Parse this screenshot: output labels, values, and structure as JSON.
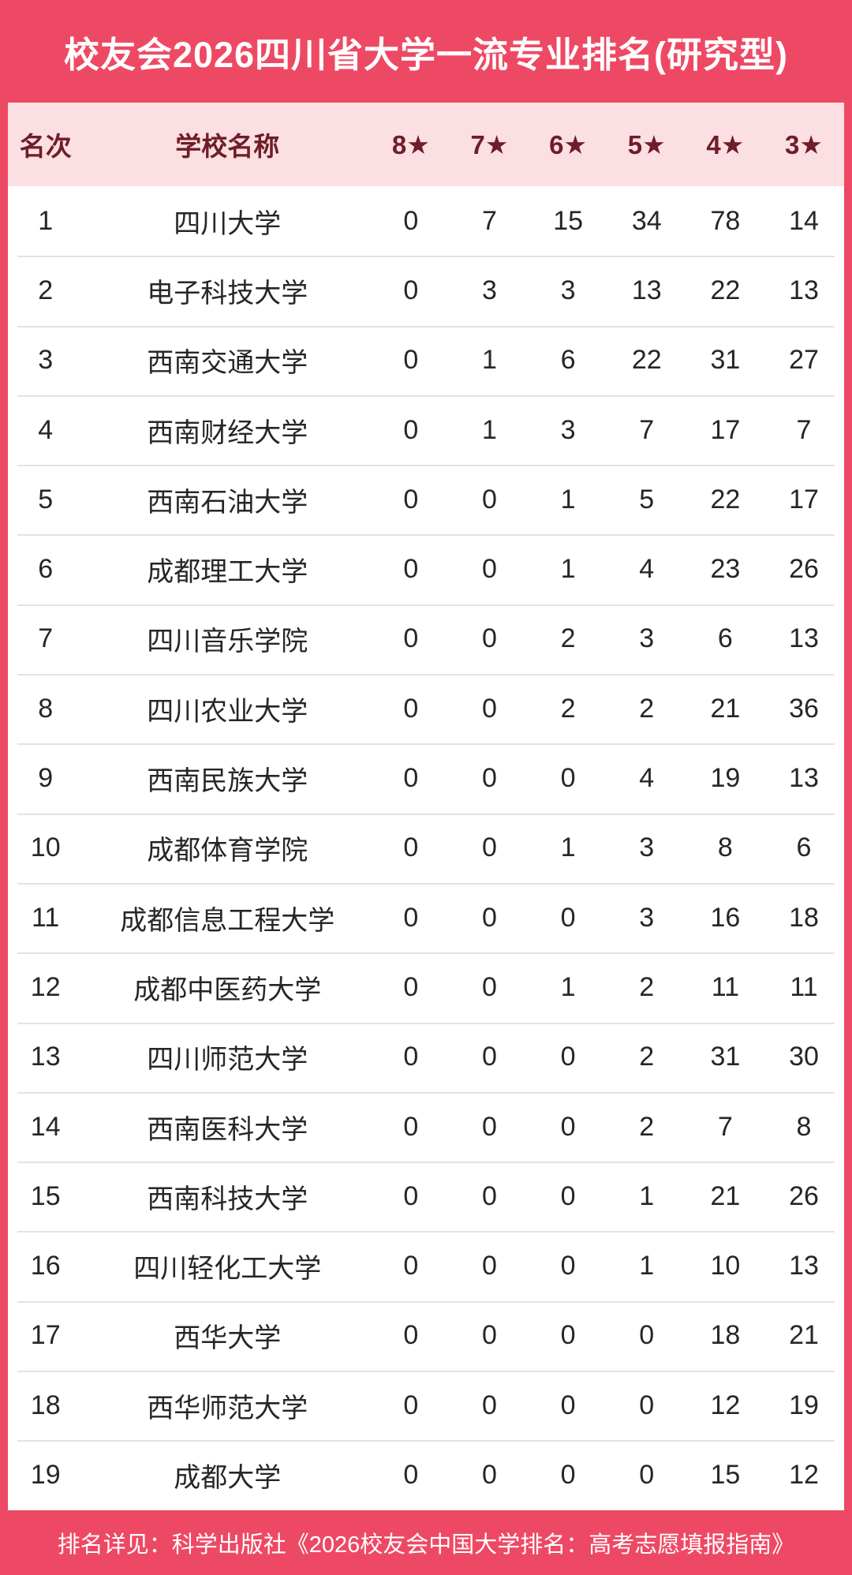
{
  "title": "校友会2026四川省大学一流专业排名(研究型)",
  "footer": {
    "note": "排名详见：科学出版社《2026校友会中国大学排名：高考志愿填报指南》"
  },
  "colors": {
    "accent": "#ee4964",
    "header_bg": "#fbdfe2",
    "header_text": "#6f1d28",
    "row_text": "#262626",
    "divider": "#ecdfe1"
  },
  "chart_data": {
    "type": "table",
    "title": "校友会2026四川省大学一流专业排名(研究型)",
    "columns": [
      "名次",
      "学校名称",
      "8★",
      "7★",
      "6★",
      "5★",
      "4★",
      "3★"
    ],
    "rows": [
      {
        "rank": "1",
        "school": "四川大学",
        "values": [
          "0",
          "7",
          "15",
          "34",
          "78",
          "14"
        ]
      },
      {
        "rank": "2",
        "school": "电子科技大学",
        "values": [
          "0",
          "3",
          "3",
          "13",
          "22",
          "13"
        ]
      },
      {
        "rank": "3",
        "school": "西南交通大学",
        "values": [
          "0",
          "1",
          "6",
          "22",
          "31",
          "27"
        ]
      },
      {
        "rank": "4",
        "school": "西南财经大学",
        "values": [
          "0",
          "1",
          "3",
          "7",
          "17",
          "7"
        ]
      },
      {
        "rank": "5",
        "school": "西南石油大学",
        "values": [
          "0",
          "0",
          "1",
          "5",
          "22",
          "17"
        ]
      },
      {
        "rank": "6",
        "school": "成都理工大学",
        "values": [
          "0",
          "0",
          "1",
          "4",
          "23",
          "26"
        ]
      },
      {
        "rank": "7",
        "school": "四川音乐学院",
        "values": [
          "0",
          "0",
          "2",
          "3",
          "6",
          "13"
        ]
      },
      {
        "rank": "8",
        "school": "四川农业大学",
        "values": [
          "0",
          "0",
          "2",
          "2",
          "21",
          "36"
        ]
      },
      {
        "rank": "9",
        "school": "西南民族大学",
        "values": [
          "0",
          "0",
          "0",
          "4",
          "19",
          "13"
        ]
      },
      {
        "rank": "10",
        "school": "成都体育学院",
        "values": [
          "0",
          "0",
          "1",
          "3",
          "8",
          "6"
        ]
      },
      {
        "rank": "11",
        "school": "成都信息工程大学",
        "values": [
          "0",
          "0",
          "0",
          "3",
          "16",
          "18"
        ]
      },
      {
        "rank": "12",
        "school": "成都中医药大学",
        "values": [
          "0",
          "0",
          "1",
          "2",
          "11",
          "11"
        ]
      },
      {
        "rank": "13",
        "school": "四川师范大学",
        "values": [
          "0",
          "0",
          "0",
          "2",
          "31",
          "30"
        ]
      },
      {
        "rank": "14",
        "school": "西南医科大学",
        "values": [
          "0",
          "0",
          "0",
          "2",
          "7",
          "8"
        ]
      },
      {
        "rank": "15",
        "school": "西南科技大学",
        "values": [
          "0",
          "0",
          "0",
          "1",
          "21",
          "26"
        ]
      },
      {
        "rank": "16",
        "school": "四川轻化工大学",
        "values": [
          "0",
          "0",
          "0",
          "1",
          "10",
          "13"
        ]
      },
      {
        "rank": "17",
        "school": "西华大学",
        "values": [
          "0",
          "0",
          "0",
          "0",
          "18",
          "21"
        ]
      },
      {
        "rank": "18",
        "school": "西华师范大学",
        "values": [
          "0",
          "0",
          "0",
          "0",
          "12",
          "19"
        ]
      },
      {
        "rank": "19",
        "school": "成都大学",
        "values": [
          "0",
          "0",
          "0",
          "0",
          "15",
          "12"
        ]
      }
    ]
  }
}
